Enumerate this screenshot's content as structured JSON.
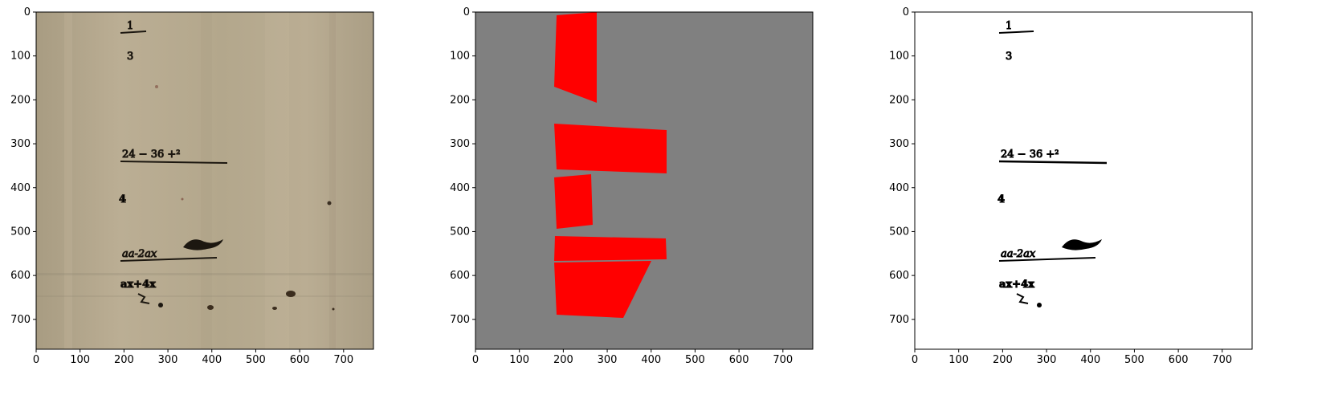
{
  "panels": [
    {
      "id": "original-scan",
      "x_ticks": [
        "0",
        "100",
        "200",
        "300",
        "400",
        "500",
        "600",
        "700"
      ],
      "y_ticks": [
        "0",
        "100",
        "200",
        "300",
        "400",
        "500",
        "600",
        "700"
      ]
    },
    {
      "id": "region-mask",
      "x_ticks": [
        "0",
        "100",
        "200",
        "300",
        "400",
        "500",
        "600",
        "700"
      ],
      "y_ticks": [
        "0",
        "100",
        "200",
        "300",
        "400",
        "500",
        "600",
        "700"
      ]
    },
    {
      "id": "binarized-output",
      "x_ticks": [
        "0",
        "100",
        "200",
        "300",
        "400",
        "500",
        "600",
        "700"
      ],
      "y_ticks": [
        "0",
        "100",
        "200",
        "300",
        "400",
        "500",
        "600",
        "700"
      ]
    }
  ],
  "handwriting": {
    "fraction_top": "1",
    "fraction_bottom": "3",
    "line_2": "24 − 36 +²",
    "line_3": "4",
    "line_4": "aa-2ax",
    "line_5": "ax+4x"
  },
  "colors": {
    "paper": "#b5a88e",
    "ink": "#1c1710",
    "mask_background": "#808080",
    "mask_region": "#ff0000",
    "binarized_background": "#ffffff"
  }
}
